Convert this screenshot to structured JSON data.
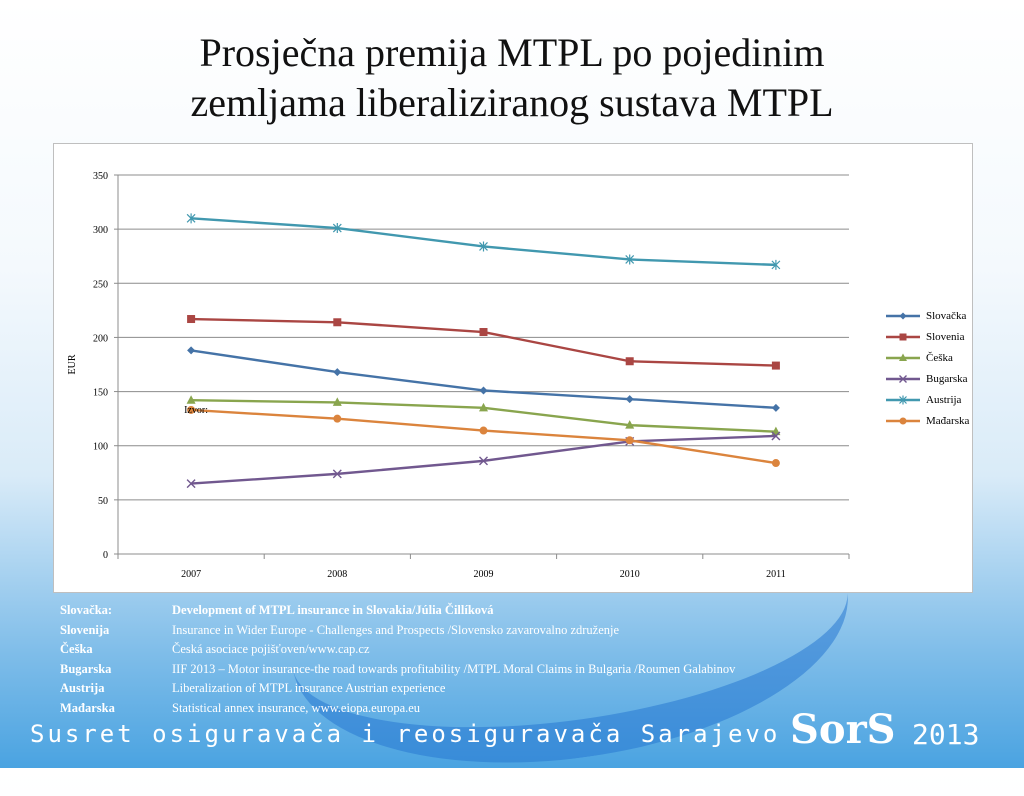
{
  "slide": {
    "title_line1": "Prosječna premija MTPL  po pojedinim",
    "title_line2": "zemljama liberaliziranog sustava MTPL",
    "footer_text": "Susret osiguravača i reosiguravača Sarajevo",
    "logo_text": "SorS",
    "logo_year": "2013"
  },
  "chart_data": {
    "type": "line",
    "title": "",
    "xlabel": "",
    "ylabel": "EUR",
    "categories": [
      "2007",
      "2008",
      "2009",
      "2010",
      "2011"
    ],
    "ylim": [
      0,
      350
    ],
    "yticks": [
      0,
      50,
      100,
      150,
      200,
      250,
      300,
      350
    ],
    "grid": true,
    "legend_position": "right",
    "annotation": "Izvor:",
    "series": [
      {
        "name": "Slovačka",
        "color": "#4573a7",
        "marker": "diamond",
        "values": [
          188,
          168,
          151,
          143,
          135
        ]
      },
      {
        "name": "Slovenia",
        "color": "#aa4643",
        "marker": "square",
        "values": [
          217,
          214,
          205,
          178,
          174
        ]
      },
      {
        "name": "Češka",
        "color": "#89a54e",
        "marker": "triangle",
        "values": [
          142,
          140,
          135,
          119,
          113
        ]
      },
      {
        "name": "Bugarska",
        "color": "#71588f",
        "marker": "x",
        "values": [
          65,
          74,
          86,
          104,
          109
        ]
      },
      {
        "name": "Austrija",
        "color": "#4198af",
        "marker": "star",
        "values": [
          310,
          301,
          284,
          272,
          267
        ]
      },
      {
        "name": "Mađarska",
        "color": "#db843d",
        "marker": "circle",
        "values": [
          133,
          125,
          114,
          105,
          84
        ]
      }
    ]
  },
  "sources": [
    {
      "label": "Slovačka:",
      "text": "Development of MTPL insurance in Slovakia/Júlia Čillíková"
    },
    {
      "label": "Slovenija",
      "text": "Insurance in Wider Europe - Challenges and Prospects /Slovensko zavarovalno združenje"
    },
    {
      "label": "Češka",
      "text": "Česká asociace pojišťoven/www.cap.cz"
    },
    {
      "label": "Bugarska",
      "text": "IIF 2013 – Motor insurance-the road towards profitability /MTPL Moral Claims in Bulgaria /Roumen Galabinov"
    },
    {
      "label": "Austrija",
      "text": "Liberalization of MTPL insurance Austrian experience"
    },
    {
      "label": "Mađarska",
      "text": "Statistical annex insurance, www.eiopa.europa.eu"
    }
  ]
}
